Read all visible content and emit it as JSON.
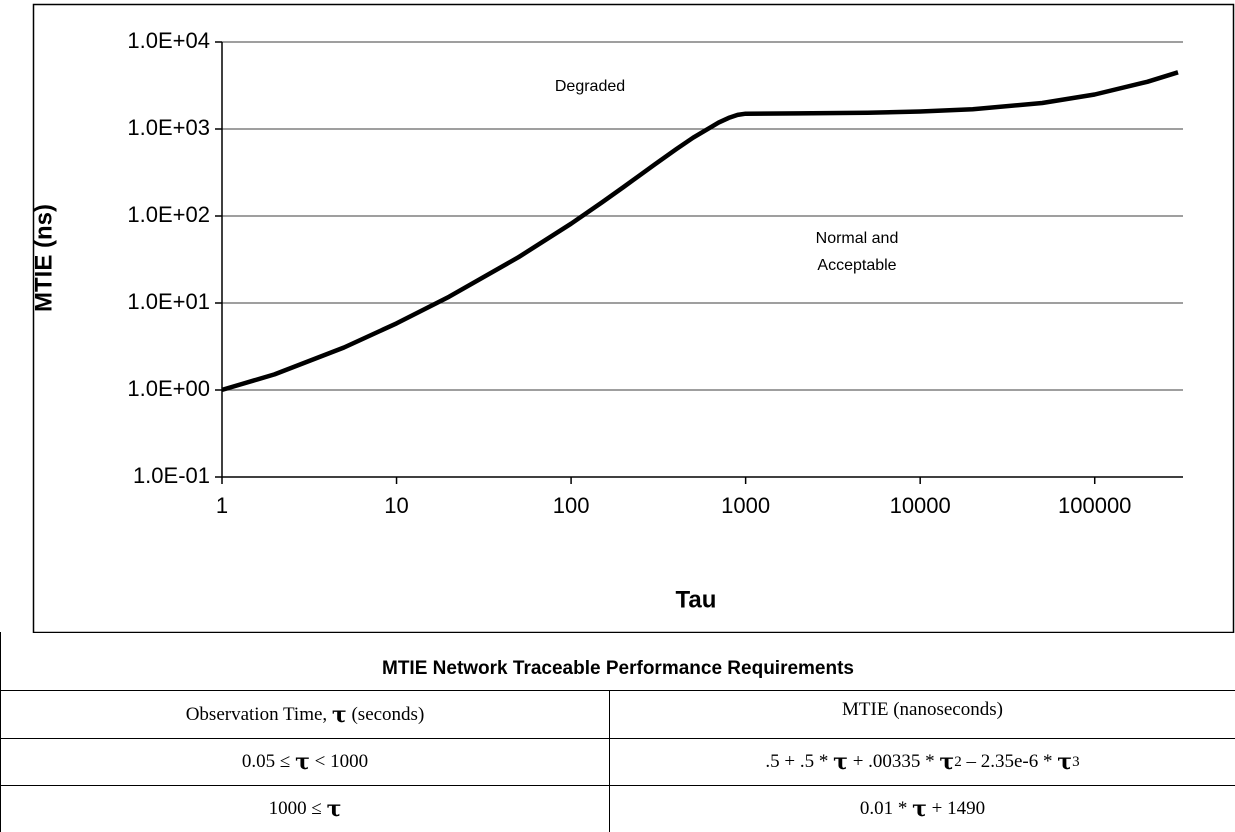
{
  "chart_data": {
    "type": "line",
    "xscale": "log",
    "yscale": "log",
    "grid": true,
    "xlabel": "Tau",
    "ylabel": "MTIE (ns)",
    "annotations": [
      {
        "text": [
          "Degraded"
        ]
      },
      {
        "text": [
          "Normal and",
          "Acceptable"
        ]
      }
    ],
    "x": [
      1,
      2,
      5,
      10,
      20,
      50,
      100,
      150,
      200,
      300,
      400,
      500,
      700,
      800,
      900,
      1000,
      2000,
      5000,
      10000,
      20000,
      50000,
      100000,
      200000,
      300000
    ],
    "series": [
      {
        "name": "MTIE",
        "color": "#000000",
        "values": [
          1.003,
          1.513,
          3.083,
          5.833,
          11.82,
          33.58,
          81.65,
          142.9,
          215.7,
          388.55,
          586.1,
          794.25,
          1185.95,
          1341.3,
          1450.85,
          1500,
          1510,
          1540,
          1590,
          1690,
          1990,
          2490,
          3490,
          4490
        ]
      }
    ],
    "xlim": [
      1,
      300000
    ],
    "xticks": [
      1,
      10,
      100,
      1000,
      10000,
      100000
    ],
    "ylim": [
      0.1,
      10000
    ],
    "yticks": [
      {
        "value": 0.1,
        "label": "1.0E-01"
      },
      {
        "value": 1,
        "label": "1.0E+00"
      },
      {
        "value": 10,
        "label": "1.0E+01"
      },
      {
        "value": 100,
        "label": "1.0E+02"
      },
      {
        "value": 1000,
        "label": "1.0E+03"
      },
      {
        "value": 10000,
        "label": "1.0E+04"
      }
    ]
  },
  "table": {
    "title": "MTIE Network Traceable Performance Requirements",
    "header": [
      [
        "Observation Time, ",
        {
          "tau": "τ"
        },
        " (seconds)"
      ],
      [
        "MTIE (nanoseconds)"
      ]
    ],
    "rows": [
      [
        [
          "0.05 ≤ ",
          {
            "tau": "τ"
          },
          " < 1000"
        ],
        [
          ".5 + .5 * ",
          {
            "tau": "τ"
          },
          " + .00335 * ",
          {
            "tau": "τ"
          },
          {
            "sup": "2"
          },
          " – 2.35e-6 * ",
          {
            "tau": "τ"
          },
          {
            "sup": "3"
          }
        ]
      ],
      [
        [
          "1000 ≤ ",
          {
            "tau": "τ"
          }
        ],
        [
          "0.01 * ",
          {
            "tau": "τ"
          },
          " + 1490"
        ]
      ]
    ]
  }
}
